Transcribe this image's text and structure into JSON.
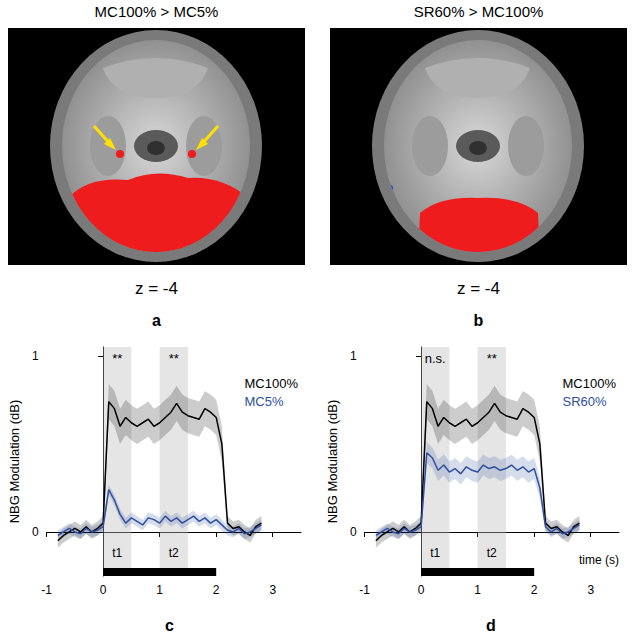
{
  "panels": [
    {
      "letter": "a",
      "title": "MC100% > MC5%",
      "z_label": "z = -4"
    },
    {
      "letter": "b",
      "title": "SR60% > MC100%",
      "z_label": "z = -4"
    }
  ],
  "chart_data": [
    {
      "letter": "c",
      "type": "line",
      "ylabel": "NBG Modulation (dB)",
      "x": [
        -0.8,
        -0.7,
        -0.6,
        -0.5,
        -0.4,
        -0.3,
        -0.2,
        -0.1,
        0.0,
        0.1,
        0.2,
        0.3,
        0.4,
        0.5,
        0.6,
        0.7,
        0.8,
        0.9,
        1.0,
        1.1,
        1.2,
        1.3,
        1.4,
        1.5,
        1.6,
        1.7,
        1.8,
        1.9,
        2.0,
        2.1,
        2.2,
        2.3,
        2.4,
        2.5,
        2.6,
        2.7,
        2.8
      ],
      "series": [
        {
          "name": "MC100%",
          "color": "#000000",
          "values": [
            -0.05,
            -0.02,
            0.0,
            0.02,
            0.0,
            0.03,
            0.0,
            0.02,
            0.05,
            0.74,
            0.7,
            0.6,
            0.65,
            0.62,
            0.6,
            0.62,
            0.64,
            0.6,
            0.62,
            0.65,
            0.68,
            0.73,
            0.68,
            0.66,
            0.65,
            0.64,
            0.7,
            0.68,
            0.65,
            0.5,
            0.05,
            0.02,
            0.03,
            0.0,
            -0.02,
            0.03,
            0.05
          ],
          "error": [
            0.04,
            0.04,
            0.04,
            0.04,
            0.04,
            0.04,
            0.04,
            0.04,
            0.04,
            0.1,
            0.1,
            0.1,
            0.1,
            0.1,
            0.1,
            0.1,
            0.1,
            0.1,
            0.1,
            0.1,
            0.1,
            0.1,
            0.1,
            0.1,
            0.1,
            0.1,
            0.1,
            0.1,
            0.1,
            0.1,
            0.04,
            0.04,
            0.04,
            0.04,
            0.04,
            0.04,
            0.04
          ]
        },
        {
          "name": "MC5%",
          "color": "#2e4fa0",
          "values": [
            -0.02,
            0.0,
            0.02,
            0.0,
            -0.01,
            0.02,
            0.0,
            0.01,
            0.03,
            0.24,
            0.18,
            0.1,
            0.05,
            0.08,
            0.06,
            0.04,
            0.08,
            0.07,
            0.05,
            0.09,
            0.06,
            0.08,
            0.05,
            0.07,
            0.09,
            0.06,
            0.08,
            0.05,
            0.07,
            0.04,
            0.01,
            0.0,
            0.02,
            -0.01,
            0.0,
            0.02,
            0.04
          ],
          "error": [
            0.03,
            0.03,
            0.03,
            0.03,
            0.03,
            0.03,
            0.03,
            0.03,
            0.03,
            0.03,
            0.03,
            0.03,
            0.03,
            0.03,
            0.03,
            0.03,
            0.03,
            0.03,
            0.03,
            0.03,
            0.03,
            0.03,
            0.03,
            0.03,
            0.03,
            0.03,
            0.03,
            0.03,
            0.03,
            0.03,
            0.03,
            0.03,
            0.03,
            0.03,
            0.03,
            0.03,
            0.03
          ]
        }
      ],
      "xlim": [
        -1,
        3.5
      ],
      "xticks": [
        -1,
        0,
        1,
        2,
        3
      ],
      "ylim": [
        -0.25,
        1.05
      ],
      "yticks": [
        0,
        1
      ],
      "windows": [
        {
          "label": "t1",
          "range": [
            0,
            0.5
          ],
          "significance": "**"
        },
        {
          "label": "t2",
          "range": [
            1,
            1.5
          ],
          "significance": "**"
        }
      ],
      "stimulus": [
        0,
        2
      ],
      "legend": "upper right"
    },
    {
      "letter": "d",
      "type": "line",
      "ylabel": "NBG Modulation (dB)",
      "xlabel": "time (s)",
      "x": [
        -0.8,
        -0.7,
        -0.6,
        -0.5,
        -0.4,
        -0.3,
        -0.2,
        -0.1,
        0.0,
        0.1,
        0.2,
        0.3,
        0.4,
        0.5,
        0.6,
        0.7,
        0.8,
        0.9,
        1.0,
        1.1,
        1.2,
        1.3,
        1.4,
        1.5,
        1.6,
        1.7,
        1.8,
        1.9,
        2.0,
        2.1,
        2.2,
        2.3,
        2.4,
        2.5,
        2.6,
        2.7,
        2.8
      ],
      "series": [
        {
          "name": "MC100%",
          "color": "#000000",
          "values": [
            -0.05,
            -0.02,
            0.0,
            0.02,
            0.0,
            0.03,
            0.0,
            0.02,
            0.05,
            0.74,
            0.7,
            0.6,
            0.65,
            0.62,
            0.6,
            0.62,
            0.64,
            0.6,
            0.62,
            0.65,
            0.68,
            0.73,
            0.68,
            0.66,
            0.65,
            0.64,
            0.7,
            0.68,
            0.65,
            0.5,
            0.05,
            0.02,
            0.03,
            0.0,
            -0.02,
            0.03,
            0.05
          ],
          "error": [
            0.04,
            0.04,
            0.04,
            0.04,
            0.04,
            0.04,
            0.04,
            0.04,
            0.04,
            0.1,
            0.1,
            0.1,
            0.1,
            0.1,
            0.1,
            0.1,
            0.1,
            0.1,
            0.1,
            0.1,
            0.1,
            0.1,
            0.1,
            0.1,
            0.1,
            0.1,
            0.1,
            0.1,
            0.1,
            0.1,
            0.04,
            0.04,
            0.04,
            0.04,
            0.04,
            0.04,
            0.04
          ]
        },
        {
          "name": "SR60%",
          "color": "#2e4fa0",
          "values": [
            -0.02,
            0.0,
            0.02,
            0.0,
            -0.01,
            0.02,
            0.0,
            0.01,
            0.03,
            0.45,
            0.42,
            0.35,
            0.38,
            0.34,
            0.36,
            0.33,
            0.37,
            0.35,
            0.34,
            0.38,
            0.36,
            0.37,
            0.35,
            0.36,
            0.38,
            0.35,
            0.37,
            0.34,
            0.36,
            0.25,
            0.03,
            0.0,
            0.02,
            -0.01,
            0.0,
            0.02,
            0.04
          ],
          "error": [
            0.03,
            0.03,
            0.03,
            0.03,
            0.03,
            0.03,
            0.03,
            0.03,
            0.03,
            0.06,
            0.06,
            0.06,
            0.06,
            0.06,
            0.06,
            0.06,
            0.06,
            0.06,
            0.06,
            0.06,
            0.06,
            0.06,
            0.06,
            0.06,
            0.06,
            0.06,
            0.06,
            0.06,
            0.06,
            0.06,
            0.03,
            0.03,
            0.03,
            0.03,
            0.03,
            0.03,
            0.03
          ]
        }
      ],
      "xlim": [
        -1,
        3.5
      ],
      "xticks": [
        -1,
        0,
        1,
        2,
        3
      ],
      "ylim": [
        -0.25,
        1.05
      ],
      "yticks": [
        0,
        1
      ],
      "windows": [
        {
          "label": "t1",
          "range": [
            0,
            0.5
          ],
          "significance": "n.s."
        },
        {
          "label": "t2",
          "range": [
            1,
            1.5
          ],
          "significance": "**"
        }
      ],
      "stimulus": [
        0,
        2
      ],
      "legend": "upper right"
    }
  ]
}
